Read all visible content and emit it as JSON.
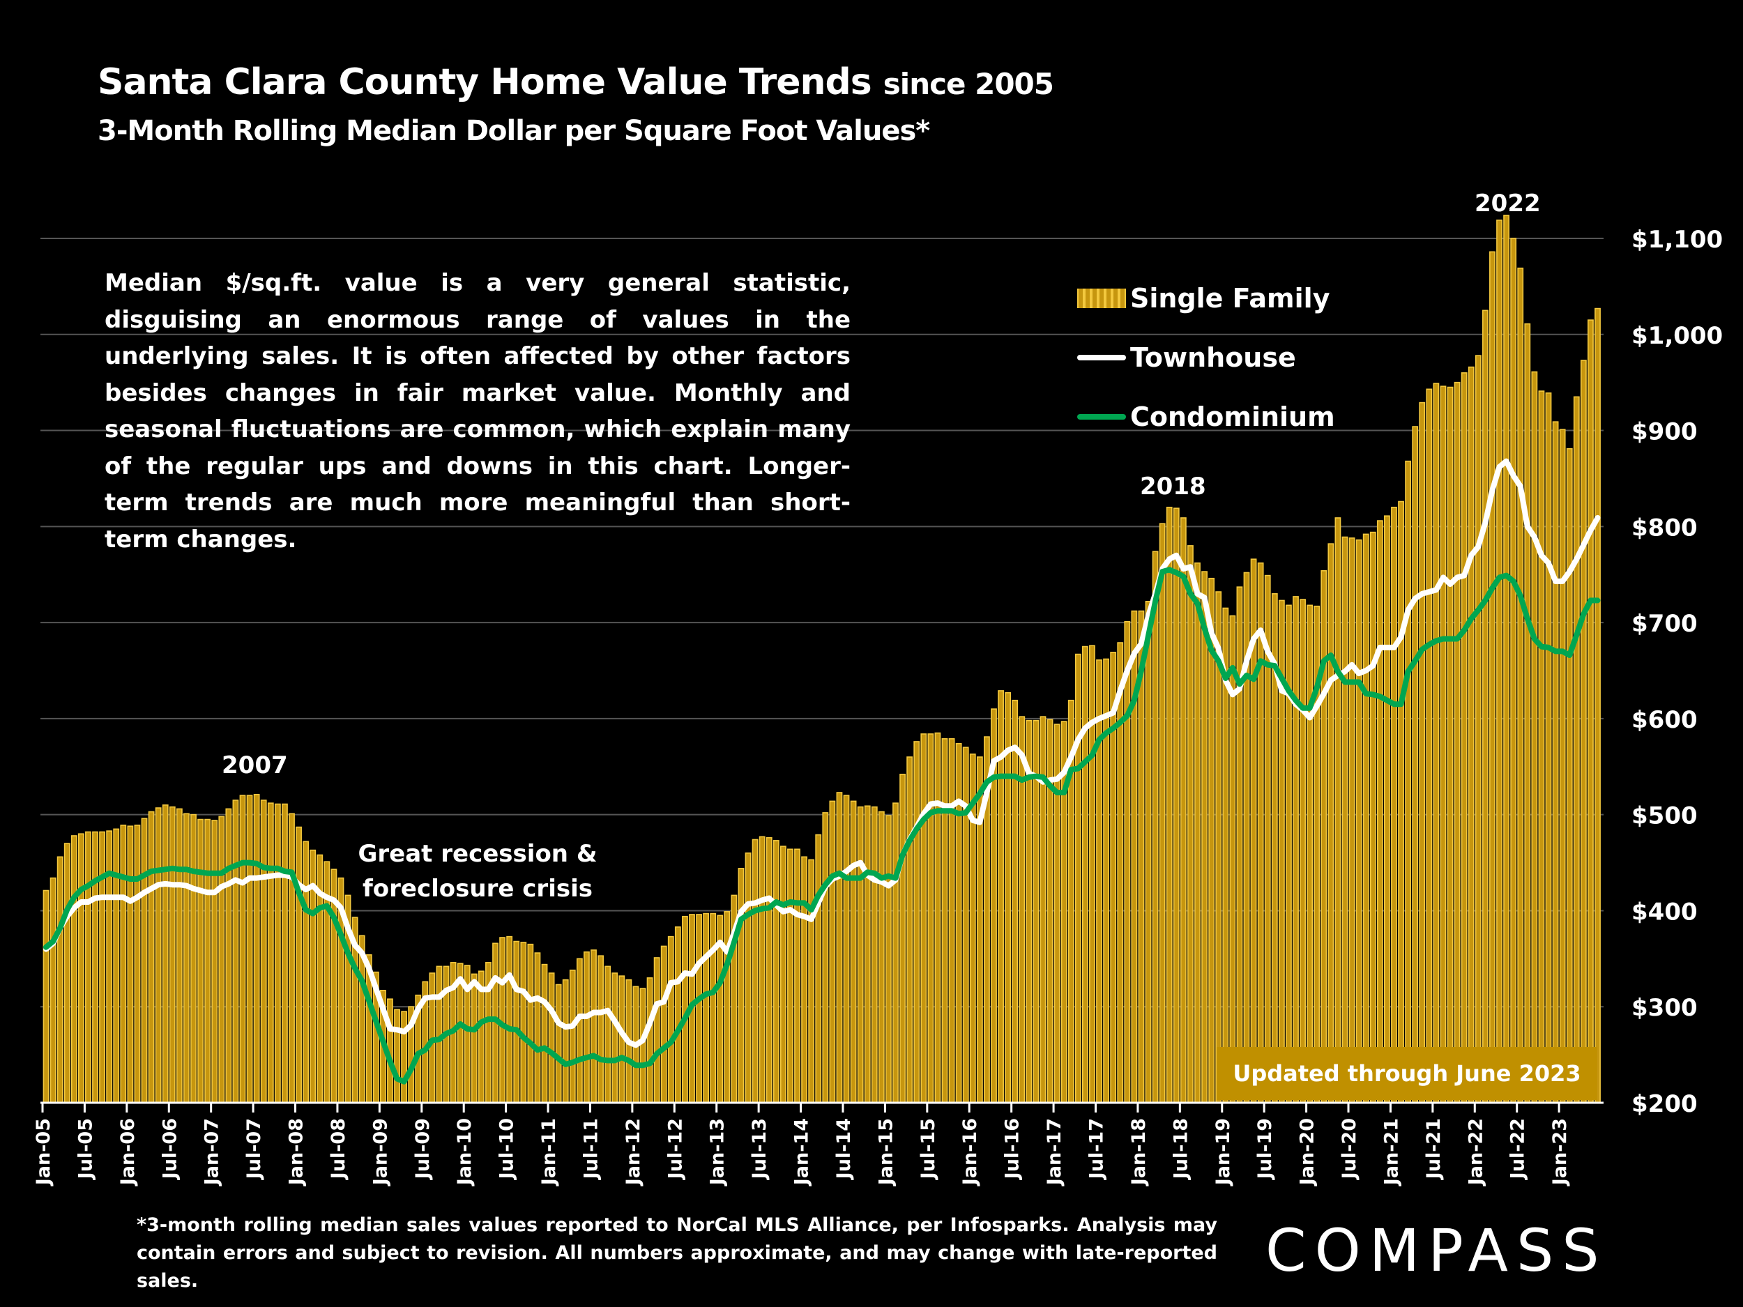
{
  "title": {
    "main": "Santa Clara County Home Value Trends",
    "since": "since 2005",
    "subtitle": "3-Month Rolling Median Dollar per Square Foot Values*"
  },
  "note": "Median $/sq.ft. value is a very general statistic, disguising an enormous range of values in the underlying sales. It is often affected by other factors besides changes in fair market value. Monthly and seasonal fluctuations are common, which explain many of the regular ups and downs in this chart. Longer-term trends are much more meaningful than short-term changes.",
  "annotations": {
    "peak_2007": "2007",
    "recession_line1": "Great recession &",
    "recession_line2": "foreclosure crisis",
    "peak_2018": "2018",
    "peak_2022": "2022",
    "updated": "Updated through June 2023"
  },
  "footnote": "*3-month rolling median sales values reported to NorCal MLS Alliance, per Infosparks. Analysis may contain errors and subject to revision. All numbers approximate, and may change with late-reported sales.",
  "logo": "COMPASS",
  "colors": {
    "background": "#000000",
    "single_family": "#c6960f",
    "single_family_edge": "#f3c83e",
    "townhouse": "#ffffff",
    "condominium": "#00a651",
    "gridline": "#555555",
    "updated_box": "#c09000"
  },
  "chart_data": {
    "type": "bar+line",
    "title": "Santa Clara County Home Value Trends since 2005",
    "subtitle": "3-Month Rolling Median Dollar per Square Foot Values*",
    "frequency": "monthly",
    "x_start": "Jan-05",
    "x_end": "Jun-23",
    "x_tick_labels": [
      "Jan-05",
      "Jul-05",
      "Jan-06",
      "Jul-06",
      "Jan-07",
      "Jul-07",
      "Jan-08",
      "Jul-08",
      "Jan-09",
      "Jul-09",
      "Jan-10",
      "Jul-10",
      "Jan-11",
      "Jul-11",
      "Jan-12",
      "Jul-12",
      "Jan-13",
      "Jul-13",
      "Jan-14",
      "Jul-14",
      "Jan-15",
      "Jul-15",
      "Jan-16",
      "Jul-16",
      "Jan-17",
      "Jul-17",
      "Jan-18",
      "Jul-18",
      "Jan-19",
      "Jul-19",
      "Jan-20",
      "Jul-20",
      "Jan-21",
      "Jul-21",
      "Jan-22",
      "Jul-22",
      "Jan-23"
    ],
    "y_ticks": [
      200,
      300,
      400,
      500,
      600,
      700,
      800,
      900,
      1000,
      1100
    ],
    "y_tick_labels": [
      "$200",
      "$300",
      "$400",
      "$500",
      "$600",
      "$700",
      "$800",
      "$900",
      "$1,000",
      "$1,100"
    ],
    "ylim": [
      200,
      1100
    ],
    "y_axis_side": "right",
    "grid": true,
    "legend_position": "top-right",
    "series": [
      {
        "name": "Single Family",
        "type": "bar",
        "values": [
          421,
          434,
          456,
          470,
          478,
          480,
          482,
          482,
          482,
          483,
          485,
          489,
          488,
          489,
          496,
          503,
          507,
          510,
          508,
          506,
          501,
          500,
          495,
          495,
          494,
          498,
          506,
          515,
          520,
          520,
          521,
          515,
          512,
          511,
          511,
          501,
          487,
          472,
          463,
          458,
          451,
          443,
          434,
          416,
          393,
          374,
          354,
          336,
          317,
          308,
          297,
          295,
          300,
          312,
          326,
          335,
          342,
          342,
          346,
          345,
          343,
          334,
          337,
          346,
          366,
          372,
          373,
          368,
          367,
          365,
          356,
          344,
          335,
          323,
          328,
          338,
          350,
          357,
          359,
          353,
          342,
          335,
          332,
          328,
          321,
          319,
          330,
          351,
          363,
          373,
          383,
          394,
          396,
          396,
          397,
          397,
          395,
          399,
          416,
          444,
          460,
          474,
          477,
          476,
          473,
          467,
          464,
          464,
          456,
          453,
          479,
          502,
          514,
          523,
          520,
          514,
          508,
          509,
          508,
          503,
          499,
          512,
          542,
          560,
          576,
          584,
          584,
          585,
          579,
          579,
          574,
          570,
          563,
          560,
          581,
          610,
          629,
          627,
          619,
          602,
          598,
          598,
          602,
          599,
          594,
          597,
          619,
          667,
          675,
          676,
          661,
          662,
          669,
          679,
          701,
          712,
          712,
          722,
          774,
          803,
          820,
          819,
          809,
          780,
          762,
          753,
          746,
          732,
          715,
          707,
          737,
          752,
          766,
          762,
          749,
          730,
          723,
          718,
          727,
          724,
          718,
          717,
          754,
          782,
          809,
          789,
          788,
          786,
          792,
          794,
          806,
          811,
          820,
          826,
          868,
          904,
          929,
          943,
          949,
          946,
          945,
          950,
          960,
          966,
          978,
          1025,
          1086,
          1119,
          1124,
          1100,
          1069,
          1011,
          961,
          941,
          939,
          909,
          901,
          881,
          935,
          973,
          1015,
          1027
        ]
      },
      {
        "name": "Townhouse",
        "type": "line",
        "values": [
          360,
          366,
          382,
          394,
          403,
          409,
          409,
          413,
          414,
          414,
          414,
          414,
          410,
          414,
          419,
          423,
          427,
          428,
          427,
          427,
          426,
          423,
          421,
          419,
          419,
          425,
          428,
          432,
          429,
          434,
          434,
          435,
          436,
          437,
          437,
          435,
          427,
          422,
          426,
          418,
          414,
          411,
          403,
          382,
          364,
          356,
          340,
          319,
          298,
          277,
          276,
          274,
          281,
          298,
          309,
          310,
          310,
          317,
          320,
          329,
          318,
          326,
          318,
          318,
          330,
          325,
          333,
          318,
          316,
          307,
          309,
          305,
          296,
          283,
          279,
          280,
          290,
          290,
          294,
          294,
          296,
          285,
          273,
          263,
          260,
          265,
          283,
          303,
          305,
          325,
          326,
          335,
          334,
          345,
          352,
          359,
          367,
          357,
          377,
          399,
          407,
          408,
          411,
          413,
          406,
          399,
          401,
          396,
          394,
          391,
          408,
          425,
          433,
          436,
          441,
          447,
          450,
          437,
          432,
          430,
          426,
          432,
          458,
          474,
          487,
          501,
          511,
          512,
          509,
          509,
          514,
          509,
          494,
          492,
          523,
          556,
          560,
          567,
          570,
          562,
          543,
          540,
          534,
          536,
          537,
          544,
          560,
          578,
          590,
          596,
          600,
          603,
          606,
          629,
          650,
          668,
          678,
          707,
          730,
          756,
          766,
          770,
          756,
          758,
          730,
          726,
          689,
          673,
          640,
          625,
          631,
          660,
          683,
          692,
          670,
          657,
          629,
          626,
          615,
          609,
          601,
          613,
          626,
          640,
          645,
          649,
          656,
          647,
          650,
          655,
          674,
          674,
          674,
          685,
          713,
          725,
          730,
          732,
          734,
          747,
          740,
          747,
          749,
          770,
          779,
          804,
          838,
          862,
          868,
          853,
          842,
          800,
          789,
          770,
          762,
          743,
          743,
          753,
          766,
          781,
          796,
          809
        ]
      },
      {
        "name": "Condominium",
        "type": "line",
        "values": [
          362,
          368,
          382,
          401,
          414,
          422,
          426,
          431,
          435,
          439,
          437,
          435,
          433,
          433,
          437,
          441,
          442,
          443,
          444,
          443,
          443,
          441,
          440,
          439,
          439,
          439,
          444,
          447,
          450,
          450,
          449,
          445,
          444,
          444,
          441,
          440,
          419,
          401,
          397,
          403,
          405,
          393,
          375,
          356,
          340,
          327,
          306,
          285,
          264,
          243,
          225,
          222,
          235,
          251,
          255,
          265,
          266,
          272,
          275,
          282,
          277,
          276,
          284,
          287,
          287,
          281,
          277,
          276,
          268,
          262,
          255,
          257,
          252,
          246,
          240,
          242,
          245,
          247,
          249,
          245,
          244,
          244,
          247,
          244,
          239,
          239,
          241,
          251,
          257,
          263,
          275,
          288,
          302,
          308,
          313,
          315,
          325,
          344,
          367,
          391,
          396,
          400,
          402,
          403,
          409,
          406,
          409,
          408,
          408,
          401,
          416,
          427,
          436,
          439,
          434,
          434,
          434,
          440,
          439,
          434,
          436,
          434,
          458,
          473,
          485,
          495,
          502,
          504,
          504,
          504,
          501,
          502,
          512,
          522,
          534,
          539,
          540,
          540,
          540,
          536,
          539,
          540,
          539,
          530,
          523,
          523,
          547,
          548,
          555,
          562,
          578,
          585,
          590,
          596,
          603,
          619,
          650,
          686,
          722,
          753,
          755,
          752,
          748,
          730,
          720,
          694,
          671,
          660,
          642,
          653,
          636,
          645,
          641,
          660,
          656,
          655,
          642,
          629,
          619,
          611,
          611,
          632,
          660,
          666,
          649,
          638,
          638,
          638,
          626,
          625,
          623,
          619,
          615,
          615,
          649,
          660,
          672,
          677,
          681,
          683,
          683,
          683,
          692,
          704,
          713,
          723,
          736,
          747,
          749,
          743,
          728,
          704,
          683,
          675,
          674,
          670,
          670,
          666,
          687,
          709,
          723,
          723
        ]
      }
    ]
  }
}
